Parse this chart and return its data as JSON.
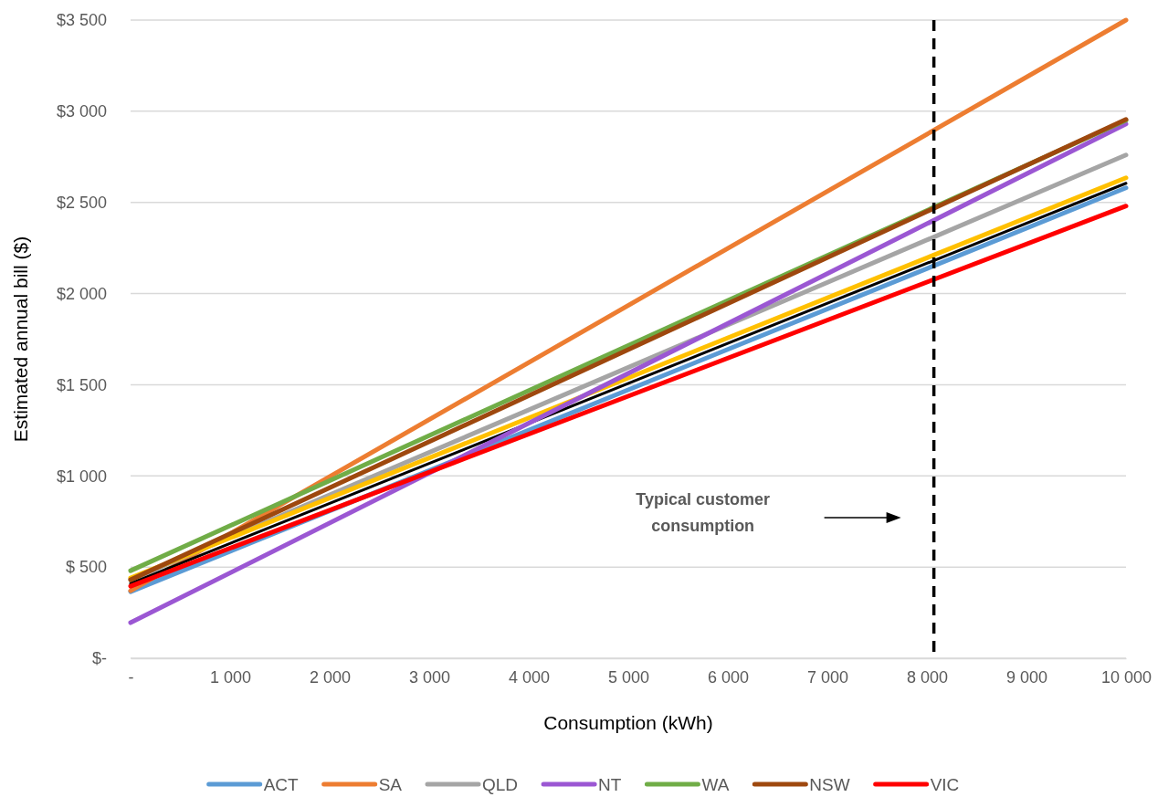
{
  "chart_data": {
    "type": "line",
    "xlabel": "Consumption (kWh)",
    "ylabel": "Estimated annual bill ($)",
    "x": [
      0,
      10000
    ],
    "series": [
      {
        "name": "ACT",
        "color": "#5b9bd5",
        "values": [
          365,
          2580
        ]
      },
      {
        "name": "SA",
        "color": "#ed7d31",
        "values": [
          370,
          3500
        ]
      },
      {
        "name": "QLD",
        "color": "#a5a5a5",
        "values": [
          430,
          2760
        ]
      },
      {
        "color": "#000000",
        "values": [
          410,
          2605
        ]
      },
      {
        "color": "#ffc000",
        "values": [
          440,
          2635
        ]
      },
      {
        "name": "NT",
        "color": "#9b57d3",
        "values": [
          195,
          2930
        ]
      },
      {
        "name": "WA",
        "color": "#70ad47",
        "values": [
          480,
          2950
        ]
      },
      {
        "name": "NSW",
        "color": "#9e480e",
        "values": [
          430,
          2955
        ]
      },
      {
        "name": "VIC",
        "color": "#ff0000",
        "values": [
          395,
          2480
        ]
      }
    ],
    "xlim": [
      0,
      10000
    ],
    "xticks": [
      {
        "value": 0,
        "label": "-"
      },
      {
        "value": 1000,
        "label": "1 000"
      },
      {
        "value": 2000,
        "label": "2 000"
      },
      {
        "value": 3000,
        "label": "3 000"
      },
      {
        "value": 4000,
        "label": "4 000"
      },
      {
        "value": 5000,
        "label": "5 000"
      },
      {
        "value": 6000,
        "label": "6 000"
      },
      {
        "value": 7000,
        "label": "7 000"
      },
      {
        "value": 8000,
        "label": "8 000"
      },
      {
        "value": 9000,
        "label": "9 000"
      },
      {
        "value": 10000,
        "label": "10 000"
      }
    ],
    "ylim": [
      0,
      3500
    ],
    "yticks": [
      {
        "value": 0,
        "label": "$-"
      },
      {
        "value": 500,
        "label": "$ 500"
      },
      {
        "value": 1000,
        "label": "$1 000"
      },
      {
        "value": 1500,
        "label": "$1 500"
      },
      {
        "value": 2000,
        "label": "$2 000"
      },
      {
        "value": 2500,
        "label": "$2 500"
      },
      {
        "value": 3000,
        "label": "$3 000"
      },
      {
        "value": 3500,
        "label": "$3 500"
      }
    ],
    "ref_lines": [
      {
        "axis": "x",
        "value": 8070,
        "color": "#000000",
        "line_style": "dashed"
      }
    ],
    "annotations": [
      "Typical customer consumption"
    ],
    "grid": "y",
    "legend": "bottom",
    "marker": "none",
    "line_style": "solid"
  }
}
